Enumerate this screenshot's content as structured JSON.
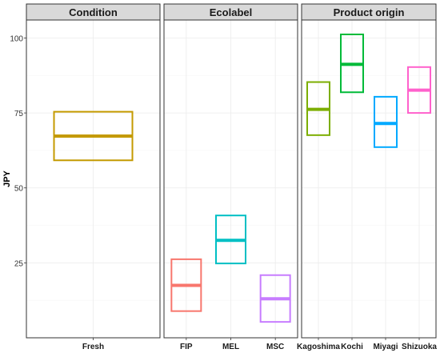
{
  "chart_data": {
    "type": "box",
    "ylabel": "JPY",
    "yticks": [
      25,
      50,
      75,
      100
    ],
    "ylim": [
      0,
      106
    ],
    "grid": true,
    "legend": "none",
    "panels": [
      {
        "title": "Condition",
        "categories": [
          "Fresh"
        ],
        "boxes": [
          {
            "category": "Fresh",
            "q1": 59.2,
            "median": 67.3,
            "q3": 75.4,
            "color": "#C49A00"
          }
        ]
      },
      {
        "title": "Ecolabel",
        "categories": [
          "FIP",
          "MEL",
          "MSC"
        ],
        "boxes": [
          {
            "category": "FIP",
            "q1": 8.9,
            "median": 17.5,
            "q3": 26.2,
            "color": "#F8766D"
          },
          {
            "category": "MEL",
            "q1": 24.8,
            "median": 32.5,
            "q3": 40.8,
            "color": "#00BFC4"
          },
          {
            "category": "MSC",
            "q1": 5.3,
            "median": 13.0,
            "q3": 20.9,
            "color": "#C77CFF"
          }
        ]
      },
      {
        "title": "Product origin",
        "categories": [
          "Kagoshima",
          "Kochi",
          "Miyagi",
          "Shizuoka"
        ],
        "boxes": [
          {
            "category": "Kagoshima",
            "q1": 67.6,
            "median": 76.2,
            "q3": 85.3,
            "color": "#7CAE00"
          },
          {
            "category": "Kochi",
            "q1": 81.9,
            "median": 91.2,
            "q3": 101.2,
            "color": "#00BA38"
          },
          {
            "category": "Miyagi",
            "q1": 63.6,
            "median": 71.5,
            "q3": 80.4,
            "color": "#00A9FF"
          },
          {
            "category": "Shizuoka",
            "q1": 75.0,
            "median": 82.6,
            "q3": 90.3,
            "color": "#FF61CC"
          }
        ]
      }
    ]
  }
}
